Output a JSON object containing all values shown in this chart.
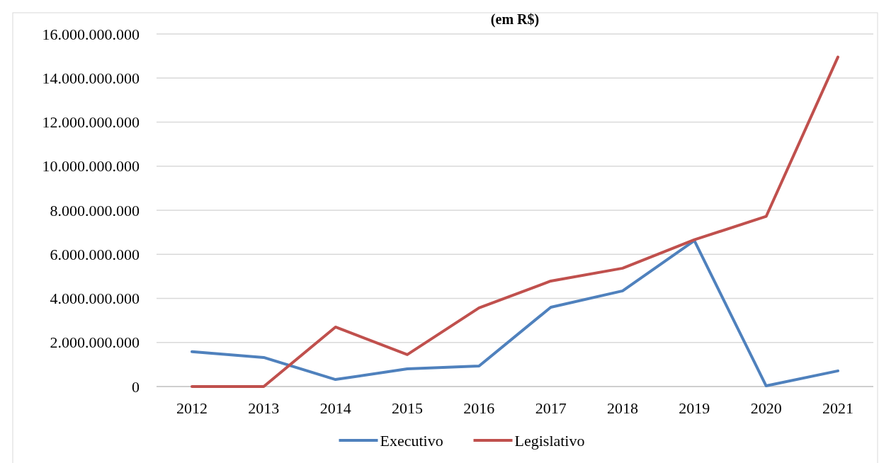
{
  "chart_data": {
    "type": "line",
    "title": "(em R$)",
    "categories": [
      "2012",
      "2013",
      "2014",
      "2015",
      "2016",
      "2017",
      "2018",
      "2019",
      "2020",
      "2021"
    ],
    "series": [
      {
        "name": "Executivo",
        "color": "#4f81bd",
        "values": [
          1580000000,
          1320000000,
          320000000,
          800000000,
          930000000,
          3600000000,
          4340000000,
          6620000000,
          30000000,
          710000000
        ]
      },
      {
        "name": "Legislativo",
        "color": "#c0504d",
        "values": [
          0,
          0,
          2700000000,
          1450000000,
          3570000000,
          4790000000,
          5370000000,
          6660000000,
          7720000000,
          14950000000
        ]
      }
    ],
    "ylim": [
      0,
      16000000000
    ],
    "yticks": [
      {
        "value": 0,
        "label": "0"
      },
      {
        "value": 2000000000,
        "label": "2.000.000.000"
      },
      {
        "value": 4000000000,
        "label": "4.000.000.000"
      },
      {
        "value": 6000000000,
        "label": "6.000.000.000"
      },
      {
        "value": 8000000000,
        "label": "8.000.000.000"
      },
      {
        "value": 10000000000,
        "label": "10.000.000.000"
      },
      {
        "value": 12000000000,
        "label": "12.000.000.000"
      },
      {
        "value": 14000000000,
        "label": "14.000.000.000"
      },
      {
        "value": 16000000000,
        "label": "16.000.000.000"
      }
    ],
    "grid": "y",
    "legend": "bottom",
    "marker": "none",
    "line_style": "solid"
  }
}
